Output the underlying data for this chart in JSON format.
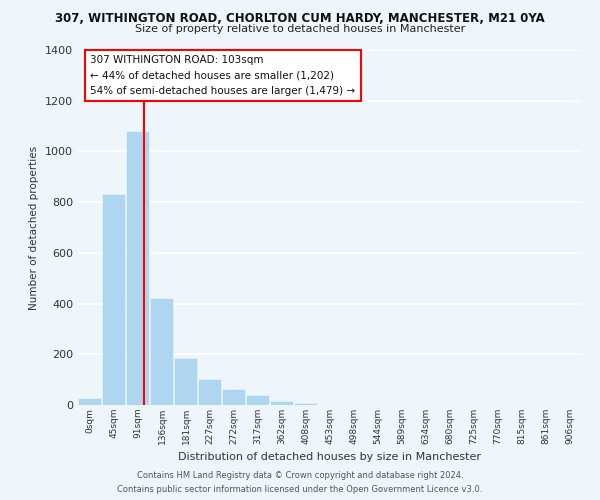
{
  "title_line1": "307, WITHINGTON ROAD, CHORLTON CUM HARDY, MANCHESTER, M21 0YA",
  "title_line2": "Size of property relative to detached houses in Manchester",
  "xlabel": "Distribution of detached houses by size in Manchester",
  "ylabel": "Number of detached properties",
  "bar_labels": [
    "0sqm",
    "45sqm",
    "91sqm",
    "136sqm",
    "181sqm",
    "227sqm",
    "272sqm",
    "317sqm",
    "362sqm",
    "408sqm",
    "453sqm",
    "498sqm",
    "544sqm",
    "589sqm",
    "634sqm",
    "680sqm",
    "725sqm",
    "770sqm",
    "815sqm",
    "861sqm",
    "906sqm"
  ],
  "bar_values": [
    25,
    830,
    1075,
    420,
    180,
    100,
    58,
    35,
    10,
    2,
    0,
    0,
    0,
    0,
    0,
    0,
    0,
    0,
    0,
    0,
    0
  ],
  "bar_color": "#aed6f1",
  "bar_edge_color": "#aed6f1",
  "property_line_color": "red",
  "annotation_text": "307 WITHINGTON ROAD: 103sqm\n← 44% of detached houses are smaller (1,202)\n54% of semi-detached houses are larger (1,479) →",
  "annotation_box_color": "white",
  "annotation_box_edge_color": "red",
  "ylim": [
    0,
    1400
  ],
  "yticks": [
    0,
    200,
    400,
    600,
    800,
    1000,
    1200,
    1400
  ],
  "footer_line1": "Contains HM Land Registry data © Crown copyright and database right 2024.",
  "footer_line2": "Contains public sector information licensed under the Open Government Licence v3.0.",
  "bg_color": "#eef5fb",
  "plot_bg_color": "#eef5fb",
  "grid_color": "white"
}
